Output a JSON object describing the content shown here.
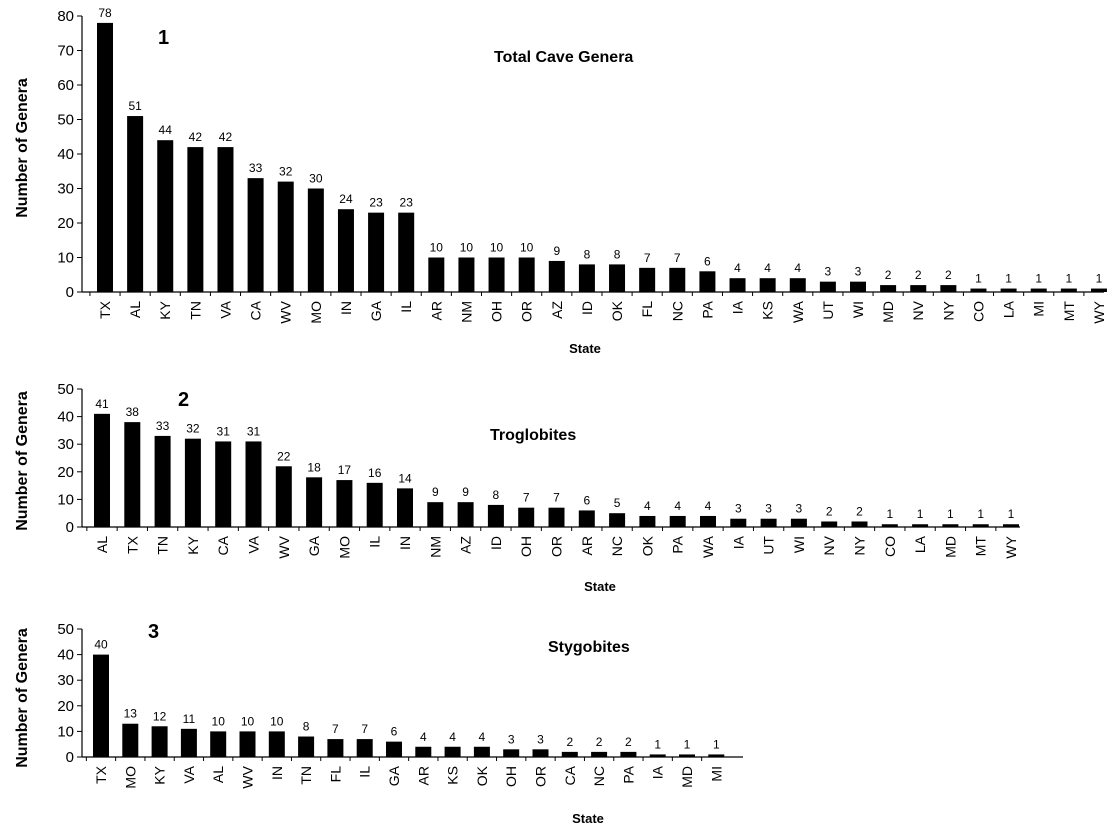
{
  "chart_data": [
    {
      "type": "bar",
      "panel_label": "1",
      "title": "Total Cave Genera",
      "xlabel": "State",
      "ylabel": "Number of Genera",
      "ylim": [
        0,
        80
      ],
      "yticks": [
        0,
        10,
        20,
        30,
        40,
        50,
        60,
        70,
        80
      ],
      "categories": [
        "TX",
        "AL",
        "KY",
        "TN",
        "VA",
        "CA",
        "WV",
        "MO",
        "IN",
        "GA",
        "IL",
        "AR",
        "NM",
        "OH",
        "OR",
        "AZ",
        "ID",
        "OK",
        "FL",
        "NC",
        "PA",
        "IA",
        "KS",
        "WA",
        "UT",
        "WI",
        "MD",
        "NV",
        "NY",
        "CO",
        "LA",
        "MI",
        "MT",
        "WY"
      ],
      "values": [
        78,
        51,
        44,
        42,
        42,
        33,
        32,
        30,
        24,
        23,
        23,
        10,
        10,
        10,
        10,
        9,
        8,
        8,
        7,
        7,
        6,
        4,
        4,
        4,
        3,
        3,
        2,
        2,
        2,
        1,
        1,
        1,
        1,
        1
      ],
      "grid": false,
      "bar_color": "#000000"
    },
    {
      "type": "bar",
      "panel_label": "2",
      "title": "Troglobites",
      "xlabel": "State",
      "ylabel": "Number of Genera",
      "ylim": [
        0,
        50
      ],
      "yticks": [
        0,
        10,
        20,
        30,
        40,
        50
      ],
      "categories": [
        "AL",
        "TX",
        "TN",
        "KY",
        "CA",
        "VA",
        "WV",
        "GA",
        "MO",
        "IL",
        "IN",
        "NM",
        "AZ",
        "ID",
        "OH",
        "OR",
        "AR",
        "NC",
        "OK",
        "PA",
        "WA",
        "IA",
        "UT",
        "WI",
        "NV",
        "NY",
        "CO",
        "LA",
        "MD",
        "MT",
        "WY"
      ],
      "values": [
        41,
        38,
        33,
        32,
        31,
        31,
        22,
        18,
        17,
        16,
        14,
        9,
        9,
        8,
        7,
        7,
        6,
        5,
        4,
        4,
        4,
        3,
        3,
        3,
        2,
        2,
        1,
        1,
        1,
        1,
        1
      ],
      "grid": false,
      "bar_color": "#000000"
    },
    {
      "type": "bar",
      "panel_label": "3",
      "title": "Stygobites",
      "xlabel": "State",
      "ylabel": "Number of Genera",
      "ylim": [
        0,
        50
      ],
      "yticks": [
        0,
        10,
        20,
        30,
        40,
        50
      ],
      "categories": [
        "TX",
        "MO",
        "KY",
        "VA",
        "AL",
        "WV",
        "IN",
        "TN",
        "FL",
        "IL",
        "GA",
        "AR",
        "KS",
        "OK",
        "OH",
        "OR",
        "CA",
        "NC",
        "PA",
        "IA",
        "MD",
        "MI"
      ],
      "values": [
        40,
        13,
        12,
        11,
        10,
        10,
        10,
        8,
        7,
        7,
        6,
        4,
        4,
        4,
        3,
        3,
        2,
        2,
        2,
        1,
        1,
        1
      ],
      "grid": false,
      "bar_color": "#000000"
    }
  ]
}
